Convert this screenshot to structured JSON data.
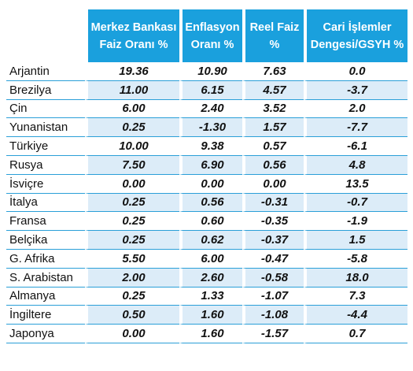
{
  "headers": {
    "col1": "Merkez Bankası Faiz Oranı %",
    "col2": "Enflasyon Oranı %",
    "col3": "Reel Faiz %",
    "col4": "Cari İşlemler Dengesi/GSYH %"
  },
  "rows": [
    {
      "country": "Arjantin",
      "rate": "19.36",
      "inflation": "10.90",
      "real": "7.63",
      "current": "0.0"
    },
    {
      "country": "Brezilya",
      "rate": "11.00",
      "inflation": "6.15",
      "real": "4.57",
      "current": "-3.7"
    },
    {
      "country": "Çin",
      "rate": "6.00",
      "inflation": "2.40",
      "real": "3.52",
      "current": "2.0"
    },
    {
      "country": "Yunanistan",
      "rate": "0.25",
      "inflation": "-1.30",
      "real": "1.57",
      "current": "-7.7"
    },
    {
      "country": "Türkiye",
      "rate": "10.00",
      "inflation": "9.38",
      "real": "0.57",
      "current": "-6.1"
    },
    {
      "country": "Rusya",
      "rate": "7.50",
      "inflation": "6.90",
      "real": "0.56",
      "current": "4.8"
    },
    {
      "country": "İsviçre",
      "rate": "0.00",
      "inflation": "0.00",
      "real": "0.00",
      "current": "13.5"
    },
    {
      "country": "İtalya",
      "rate": "0.25",
      "inflation": "0.56",
      "real": "-0.31",
      "current": "-0.7"
    },
    {
      "country": "Fransa",
      "rate": "0.25",
      "inflation": "0.60",
      "real": "-0.35",
      "current": "-1.9"
    },
    {
      "country": "Belçika",
      "rate": "0.25",
      "inflation": "0.62",
      "real": "-0.37",
      "current": "1.5"
    },
    {
      "country": "G. Afrika",
      "rate": "5.50",
      "inflation": "6.00",
      "real": "-0.47",
      "current": "-5.8"
    },
    {
      "country": "S. Arabistan",
      "rate": "2.00",
      "inflation": "2.60",
      "real": "-0.58",
      "current": "18.0"
    },
    {
      "country": "Almanya",
      "rate": "0.25",
      "inflation": "1.33",
      "real": "-1.07",
      "current": "7.3"
    },
    {
      "country": "İngiltere",
      "rate": "0.50",
      "inflation": "1.60",
      "real": "-1.08",
      "current": "-4.4"
    },
    {
      "country": "Japonya",
      "rate": "0.00",
      "inflation": "1.60",
      "real": "-1.57",
      "current": "0.7"
    }
  ],
  "colors": {
    "header_bg": "#1aa0dd",
    "row_stripe": "#dcecf8",
    "rule": "#2a9fd8"
  }
}
